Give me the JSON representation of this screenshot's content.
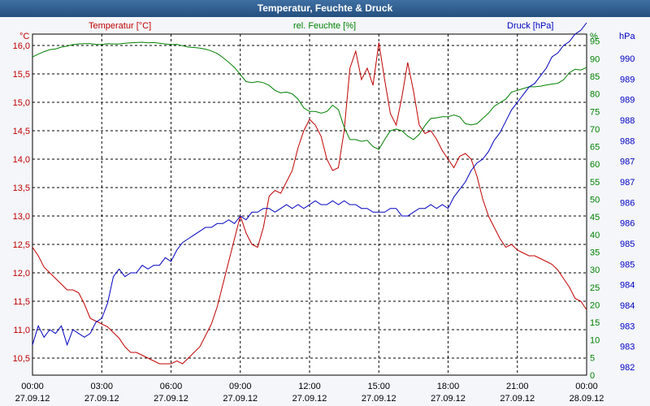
{
  "window": {
    "title": "Temperatur, Feuchte & Druck"
  },
  "colors": {
    "temperature": "#c00000",
    "humidity": "#008000",
    "pressure": "#0000c0",
    "grid": "#000000",
    "background": "#ffffff",
    "titlebar": "#2d5b8c"
  },
  "chart_data": {
    "type": "line",
    "title": "Temperatur, Feuchte & Druck",
    "grid": true,
    "x_ticks": [
      {
        "time": "00:00",
        "date": "27.09.12"
      },
      {
        "time": "03:00",
        "date": "27.09.12"
      },
      {
        "time": "06:00",
        "date": "27.09.12"
      },
      {
        "time": "09:00",
        "date": "27.09.12"
      },
      {
        "time": "12:00",
        "date": "27.09.12"
      },
      {
        "time": "15:00",
        "date": "27.09.12"
      },
      {
        "time": "18:00",
        "date": "27.09.12"
      },
      {
        "time": "21:00",
        "date": "27.09.12"
      },
      {
        "time": "00:00",
        "date": "28.09.12"
      }
    ],
    "axes": {
      "left": {
        "unit": "°C",
        "min": 10.2,
        "max": 16.2,
        "ticks": [
          "16,0",
          "15,5",
          "15,0",
          "14,5",
          "14,0",
          "13,5",
          "13,0",
          "12,5",
          "12,0",
          "11,5",
          "11,0",
          "10,5"
        ]
      },
      "right1": {
        "unit": "%",
        "min": 0,
        "max": 97,
        "ticks": [
          "95",
          "90",
          "85",
          "80",
          "75",
          "70",
          "65",
          "60",
          "55",
          "50",
          "45",
          "40",
          "35",
          "30",
          "25",
          "20",
          "15",
          "10",
          "5",
          "0"
        ]
      },
      "right2": {
        "unit": "hPa",
        "min": 981.6,
        "max": 990.6,
        "ticks": [
          "990",
          "989",
          "989",
          "988",
          "988",
          "987",
          "987",
          "986",
          "986",
          "985",
          "985",
          "984",
          "984",
          "983",
          "983",
          "982"
        ]
      }
    },
    "series": [
      {
        "name": "Temperatur [°C]",
        "axis": "left",
        "x": [
          0,
          0.25,
          0.5,
          0.75,
          1.0,
          1.25,
          1.5,
          1.75,
          2.0,
          2.25,
          2.5,
          2.75,
          3.0,
          3.25,
          3.5,
          3.75,
          4.0,
          4.25,
          4.5,
          4.75,
          5.0,
          5.25,
          5.5,
          5.75,
          6.0,
          6.25,
          6.5,
          6.75,
          7.0,
          7.25,
          7.5,
          7.75,
          8.0,
          8.25,
          8.5,
          8.75,
          9.0,
          9.25,
          9.5,
          9.75,
          10.0,
          10.25,
          10.5,
          10.75,
          11.0,
          11.25,
          11.5,
          11.75,
          12.0,
          12.25,
          12.5,
          12.75,
          13.0,
          13.25,
          13.5,
          13.75,
          14.0,
          14.25,
          14.5,
          14.75,
          15.0,
          15.25,
          15.5,
          15.75,
          16.0,
          16.25,
          16.5,
          16.75,
          17.0,
          17.25,
          17.5,
          17.75,
          18.0,
          18.25,
          18.5,
          18.75,
          19.0,
          19.25,
          19.5,
          19.75,
          20.0,
          20.25,
          20.5,
          20.75,
          21.0,
          21.25,
          21.5,
          21.75,
          22.0,
          22.25,
          22.5,
          22.75,
          23.0,
          23.25,
          23.5,
          23.75,
          24.0
        ],
        "values": [
          12.45,
          12.3,
          12.1,
          12.0,
          11.9,
          11.8,
          11.7,
          11.7,
          11.65,
          11.45,
          11.2,
          11.15,
          11.1,
          11.05,
          10.95,
          10.85,
          10.7,
          10.6,
          10.6,
          10.55,
          10.5,
          10.45,
          10.4,
          10.4,
          10.4,
          10.45,
          10.4,
          10.5,
          10.6,
          10.7,
          10.9,
          11.1,
          11.4,
          11.8,
          12.2,
          12.6,
          13.0,
          12.7,
          12.5,
          12.45,
          12.8,
          13.35,
          13.45,
          13.4,
          13.6,
          13.8,
          14.2,
          14.5,
          14.7,
          14.6,
          14.4,
          14.0,
          13.8,
          13.85,
          14.5,
          15.6,
          15.9,
          15.4,
          15.6,
          15.3,
          16.05,
          15.4,
          14.8,
          14.6,
          15.1,
          15.7,
          15.2,
          14.6,
          14.45,
          14.5,
          14.35,
          14.15,
          14.0,
          13.85,
          14.05,
          14.1,
          14.0,
          13.7,
          13.3,
          13.0,
          12.8,
          12.6,
          12.45,
          12.5,
          12.4,
          12.35,
          12.3,
          12.3,
          12.25,
          12.2,
          12.15,
          12.05,
          11.9,
          11.75,
          11.55,
          11.5,
          11.35
        ]
      },
      {
        "name": "rel. Feuchte [%]",
        "axis": "right1",
        "x": [
          0,
          0.25,
          0.5,
          0.75,
          1.0,
          1.25,
          1.5,
          1.75,
          2.0,
          2.25,
          2.5,
          2.75,
          3.0,
          3.25,
          3.5,
          3.75,
          4.0,
          4.25,
          4.5,
          4.75,
          5.0,
          5.25,
          5.5,
          5.75,
          6.0,
          6.25,
          6.5,
          6.75,
          7.0,
          7.25,
          7.5,
          7.75,
          8.0,
          8.25,
          8.5,
          8.75,
          9.0,
          9.25,
          9.5,
          9.75,
          10.0,
          10.25,
          10.5,
          10.75,
          11.0,
          11.25,
          11.5,
          11.75,
          12.0,
          12.25,
          12.5,
          12.75,
          13.0,
          13.25,
          13.5,
          13.75,
          14.0,
          14.25,
          14.5,
          14.75,
          15.0,
          15.25,
          15.5,
          15.75,
          16.0,
          16.25,
          16.5,
          16.75,
          17.0,
          17.25,
          17.5,
          17.75,
          18.0,
          18.25,
          18.5,
          18.75,
          19.0,
          19.25,
          19.5,
          19.75,
          20.0,
          20.25,
          20.5,
          20.75,
          21.0,
          21.25,
          21.5,
          21.75,
          22.0,
          22.25,
          22.5,
          22.75,
          23.0,
          23.25,
          23.5,
          23.75,
          24.0
        ],
        "values": [
          90.5,
          91.3,
          92.0,
          92.6,
          92.8,
          93.3,
          93.6,
          94.0,
          94.2,
          94.3,
          94.3,
          94.1,
          94.0,
          94.3,
          94.2,
          94.2,
          94.4,
          94.5,
          94.6,
          94.7,
          94.5,
          94.6,
          94.4,
          94.2,
          94.0,
          94.1,
          93.7,
          93.3,
          93.2,
          93.0,
          92.7,
          92.2,
          91.5,
          90.3,
          89.0,
          87.5,
          85.5,
          83.5,
          83.2,
          83.5,
          83.2,
          82.4,
          81.0,
          80.3,
          80.5,
          80.0,
          78.5,
          76.0,
          75.0,
          75.0,
          74.5,
          75.0,
          76.8,
          75.5,
          70.5,
          67.0,
          67.0,
          66.5,
          66.8,
          65.0,
          64.2,
          67.0,
          69.5,
          70.0,
          69.5,
          68.0,
          67.0,
          68.5,
          71.0,
          73.0,
          73.2,
          73.5,
          73.5,
          74.0,
          73.5,
          71.5,
          71.2,
          71.5,
          73.0,
          74.5,
          76.5,
          77.5,
          78.5,
          80.5,
          81.0,
          81.5,
          82.0,
          82.0,
          82.2,
          82.5,
          82.8,
          83.0,
          84.0,
          86.0,
          87.0,
          86.8,
          87.5
        ]
      },
      {
        "name": "Druck [hPa]",
        "axis": "right2",
        "x": [
          0,
          0.25,
          0.5,
          0.75,
          1.0,
          1.25,
          1.5,
          1.75,
          2.0,
          2.25,
          2.5,
          2.75,
          3.0,
          3.25,
          3.5,
          3.75,
          4.0,
          4.25,
          4.5,
          4.75,
          5.0,
          5.25,
          5.5,
          5.75,
          6.0,
          6.25,
          6.5,
          6.75,
          7.0,
          7.25,
          7.5,
          7.75,
          8.0,
          8.25,
          8.5,
          8.75,
          9.0,
          9.25,
          9.5,
          9.75,
          10.0,
          10.25,
          10.5,
          10.75,
          11.0,
          11.25,
          11.5,
          11.75,
          12.0,
          12.25,
          12.5,
          12.75,
          13.0,
          13.25,
          13.5,
          13.75,
          14.0,
          14.25,
          14.5,
          14.75,
          15.0,
          15.25,
          15.5,
          15.75,
          16.0,
          16.25,
          16.5,
          16.75,
          17.0,
          17.25,
          17.5,
          17.75,
          18.0,
          18.25,
          18.5,
          18.75,
          19.0,
          19.25,
          19.5,
          19.75,
          20.0,
          20.25,
          20.5,
          20.75,
          21.0,
          21.25,
          21.5,
          21.75,
          22.0,
          22.25,
          22.5,
          22.75,
          23.0,
          23.25,
          23.5,
          23.75,
          24.0
        ],
        "values": [
          982.4,
          982.9,
          982.6,
          982.8,
          982.7,
          982.9,
          982.4,
          982.8,
          982.7,
          982.6,
          982.7,
          983.0,
          983.1,
          983.5,
          984.2,
          984.4,
          984.2,
          984.3,
          984.3,
          984.5,
          984.4,
          984.5,
          984.5,
          984.7,
          984.6,
          984.9,
          985.1,
          985.2,
          985.3,
          985.4,
          985.5,
          985.5,
          985.6,
          985.6,
          985.7,
          985.6,
          985.8,
          985.7,
          985.9,
          985.9,
          986.0,
          986.0,
          985.9,
          986.0,
          986.1,
          986.0,
          986.1,
          986.0,
          986.1,
          986.2,
          986.1,
          986.1,
          986.2,
          986.1,
          986.2,
          986.1,
          986.1,
          986.0,
          986.0,
          985.9,
          985.9,
          985.9,
          986.0,
          986.0,
          985.8,
          985.8,
          985.9,
          986.0,
          986.0,
          986.1,
          986.0,
          986.1,
          986.0,
          986.3,
          986.5,
          986.7,
          987.0,
          987.2,
          987.3,
          987.5,
          987.8,
          988.0,
          988.3,
          988.6,
          988.8,
          989.0,
          989.2,
          989.3,
          989.5,
          989.7,
          990.0,
          990.1,
          990.3,
          990.4,
          990.6,
          990.7,
          990.9
        ]
      }
    ]
  }
}
